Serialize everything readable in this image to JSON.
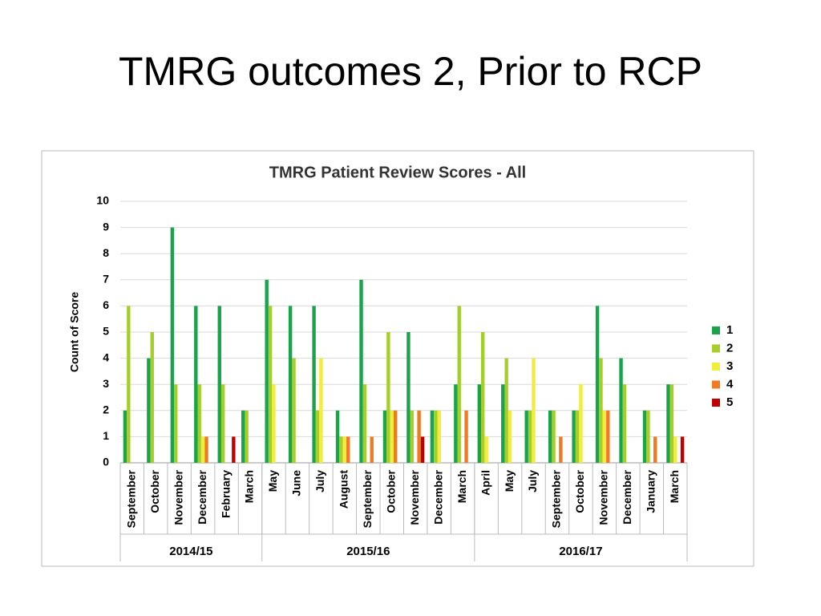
{
  "slide_title": "TMRG outcomes 2, Prior to RCP",
  "chart_data": {
    "type": "bar",
    "title": "TMRG Patient Review Scores - All",
    "y_label": "Count of Score",
    "groups": [
      {
        "label": "2014/15",
        "categories": [
          "September",
          "October",
          "November",
          "December",
          "February",
          "March"
        ]
      },
      {
        "label": "2015/16",
        "categories": [
          "May",
          "June",
          "July",
          "August",
          "September",
          "October",
          "November",
          "December",
          "March"
        ]
      },
      {
        "label": "2016/17",
        "categories": [
          "April",
          "May",
          "July",
          "September",
          "October",
          "November",
          "December",
          "January",
          "March"
        ]
      }
    ],
    "series": [
      {
        "name": "1",
        "color": "#1aa34a",
        "values": [
          2,
          4,
          9,
          6,
          6,
          2,
          7,
          6,
          6,
          2,
          7,
          2,
          5,
          2,
          3,
          3,
          3,
          2,
          2,
          2,
          6,
          4,
          2,
          3
        ]
      },
      {
        "name": "2",
        "color": "#a4cf2a",
        "values": [
          6,
          5,
          3,
          3,
          3,
          2,
          6,
          4,
          2,
          1,
          3,
          5,
          2,
          2,
          6,
          5,
          4,
          2,
          2,
          2,
          4,
          3,
          2,
          3
        ]
      },
      {
        "name": "3",
        "color": "#f2ec3c",
        "values": [
          0,
          0,
          0,
          1,
          0,
          0,
          3,
          0,
          4,
          1,
          0,
          2,
          0,
          2,
          0,
          1,
          2,
          4,
          0,
          3,
          2,
          0,
          0,
          1
        ]
      },
      {
        "name": "4",
        "color": "#f07a22",
        "values": [
          0,
          0,
          0,
          1,
          0,
          0,
          0,
          0,
          0,
          1,
          1,
          2,
          2,
          0,
          2,
          0,
          0,
          0,
          1,
          0,
          2,
          0,
          1,
          0
        ]
      },
      {
        "name": "5",
        "color": "#c00000",
        "values": [
          0,
          0,
          0,
          0,
          1,
          0,
          0,
          0,
          0,
          0,
          0,
          0,
          1,
          0,
          0,
          0,
          0,
          0,
          0,
          0,
          0,
          0,
          0,
          1
        ]
      }
    ],
    "ylim": [
      0,
      10
    ],
    "yticks": [
      0,
      1,
      2,
      3,
      4,
      5,
      6,
      7,
      8,
      9,
      10
    ],
    "grid": true,
    "legend": "right"
  }
}
